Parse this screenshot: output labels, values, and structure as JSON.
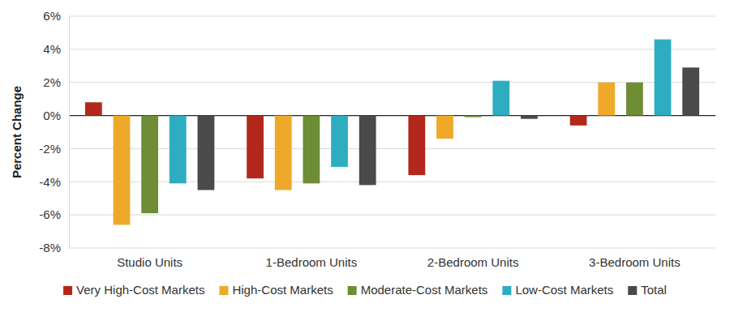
{
  "chart_data": {
    "type": "bar",
    "y_label": "Percent Change",
    "categories": [
      "Studio Units",
      "1-Bedroom Units",
      "2-Bedroom Units",
      "3-Bedroom Units"
    ],
    "series": [
      {
        "name": "Very High-Cost Markets",
        "color": "#b3281c",
        "values": [
          0.8,
          -3.8,
          -3.6,
          -0.6
        ]
      },
      {
        "name": "High-Cost Markets",
        "color": "#efa92a",
        "values": [
          -6.6,
          -4.5,
          -1.4,
          2.0
        ]
      },
      {
        "name": "Moderate-Cost Markets",
        "color": "#6e8d35",
        "values": [
          -5.9,
          -4.1,
          -0.1,
          2.0
        ]
      },
      {
        "name": "Low-Cost Markets",
        "color": "#2eadc1",
        "values": [
          -4.1,
          -3.1,
          2.1,
          4.6
        ]
      },
      {
        "name": "Total",
        "color": "#4a4a4a",
        "values": [
          -4.5,
          -4.2,
          -0.2,
          2.9
        ]
      }
    ],
    "ylim": [
      -8,
      6
    ],
    "yticks": [
      {
        "value": -8,
        "label": "-8%"
      },
      {
        "value": -6,
        "label": "-6%"
      },
      {
        "value": -4,
        "label": "-4%"
      },
      {
        "value": -2,
        "label": "-2%"
      },
      {
        "value": 0,
        "label": "0%"
      },
      {
        "value": 2,
        "label": "2%"
      },
      {
        "value": 4,
        "label": "4%"
      },
      {
        "value": 6,
        "label": "6%"
      }
    ],
    "grid": true,
    "legend": "bottom"
  }
}
